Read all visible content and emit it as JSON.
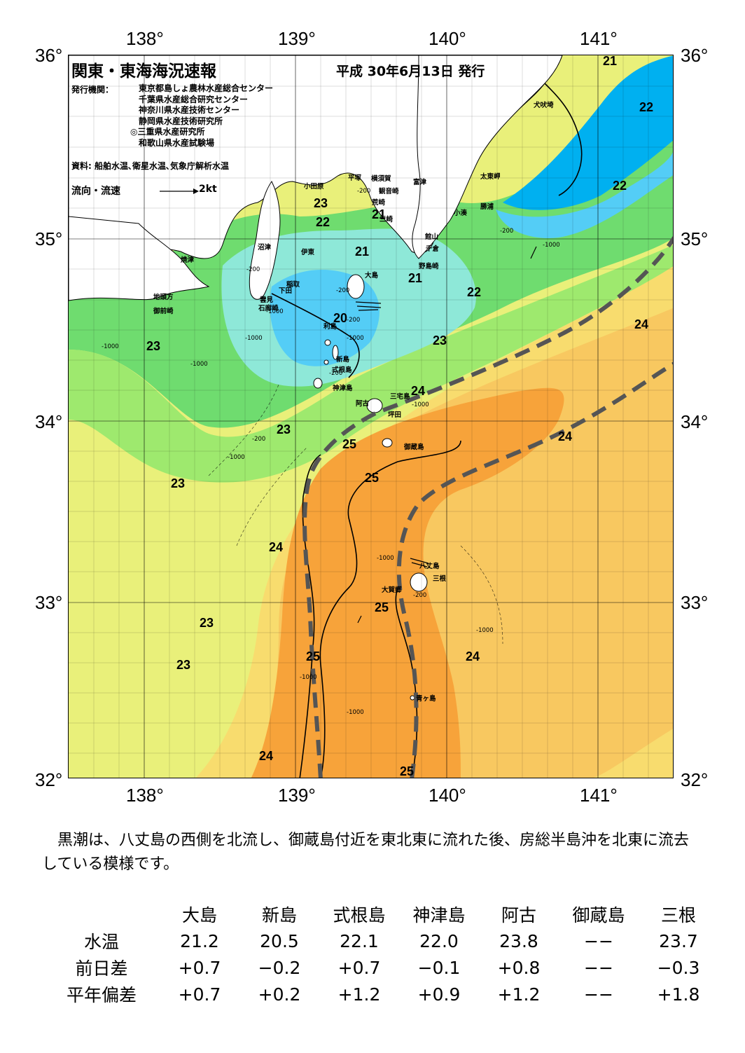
{
  "header": {
    "title": "関東・東海海況速報",
    "date": "平成 30年6月13日 発行",
    "org_label": "発行機関：",
    "organizations": [
      "東京都島しょ農林水産総合センター",
      "千葉県水産総合研究センター",
      "神奈川県水産技術センター",
      "静岡県水産技術研究所",
      "◎三重県水産研究所",
      "和歌山県水産試験場"
    ],
    "source": "資料: 船舶水温､衛星水温､気象庁解析水温",
    "flow_legend": "流向・流速",
    "flow_kt": "2kt"
  },
  "axes": {
    "lon_top": [
      "138°",
      "139°",
      "140°",
      "141°"
    ],
    "lon_bottom": [
      "138°",
      "139°",
      "140°",
      "141°"
    ],
    "lat_left": [
      "36°",
      "35°",
      "34°",
      "33°",
      "32°"
    ],
    "lat_right": [
      "36°",
      "35°",
      "34°",
      "33°",
      "32°"
    ]
  },
  "places": {
    "inubosaki": "犬吠埼",
    "taitomisaki": "太東岬",
    "katsuura": "勝浦",
    "kominato": "小湊",
    "tomitsu": "富津",
    "yokosuka": "横須賀",
    "kannonzaki": "観音崎",
    "arasaki": "荒崎",
    "misaki": "三崎",
    "hiratsuka": "平塚",
    "odawara": "小田原",
    "tateyama": "館山",
    "chikura": "千倉",
    "nojimazaki": "野島崎",
    "numazu": "沼津",
    "ito": "伊東",
    "yaizu": "焼津",
    "inatori": "稲取",
    "shimoda": "下田",
    "kumomi": "雲見",
    "irozaki": "石廊崎",
    "jitogata": "地頭方",
    "omaezaki": "御前崎",
    "oshima": "大島",
    "toshima": "利島",
    "niijima": "新島",
    "shikinejima": "式根島",
    "kozushima": "神津島",
    "miyakejima": "三宅島",
    "ako": "阿古",
    "tsubota": "坪田",
    "mikurajima": "御蔵島",
    "hachijojima": "八丈島",
    "mitsune": "三根",
    "okago": "大賀郷",
    "aogashima": "青ヶ島"
  },
  "isotherm_labels": [
    "21",
    "22",
    "22",
    "23",
    "22",
    "21",
    "21",
    "21",
    "22",
    "20",
    "23",
    "24",
    "23",
    "24",
    "23",
    "24",
    "25",
    "25",
    "24",
    "23",
    "25",
    "24",
    "23",
    "23",
    "25",
    "24",
    "25"
  ],
  "depth_labels": [
    "-200",
    "-200",
    "-200",
    "-1000",
    "-1000",
    "-1000",
    "-200",
    "-1000",
    "-200",
    "-1000",
    "-1000",
    "-200",
    "-1000",
    "-1000",
    "-1000",
    "-1000",
    "-200",
    "-1000",
    "-1000",
    "-200"
  ],
  "summary": "黒潮は、八丈島の西側を北流し、御蔵島付近を東北東に流れた後、房総半島沖を北東に流去している模様です。",
  "stats": {
    "columns": [
      "大島",
      "新島",
      "式根島",
      "神津島",
      "阿古",
      "御蔵島",
      "三根"
    ],
    "rows": [
      {
        "label": "水温",
        "values": [
          "21.2",
          "20.5",
          "22.1",
          "22.0",
          "23.8",
          "−−",
          "23.7"
        ]
      },
      {
        "label": "前日差",
        "values": [
          "+0.7",
          "−0.2",
          "+0.7",
          "−0.1",
          "+0.8",
          "−−",
          "−0.3"
        ]
      },
      {
        "label": "平年偏差",
        "values": [
          "+0.7",
          "+0.2",
          "+1.2",
          "+0.9",
          "+1.2",
          "−−",
          "+1.8"
        ]
      }
    ]
  },
  "colors": {
    "sst_19": "#00b0f0",
    "sst_20": "#54cdf6",
    "sst_21": "#8ee8d8",
    "sst_22": "#6fdc6f",
    "sst_23": "#9ee96e",
    "sst_23_5": "#e9f07a",
    "sst_24": "#f8dc6e",
    "sst_24_5": "#f8c860",
    "sst_25": "#f7a33a",
    "kuroshio_axis": "#555555",
    "land": "#ffffff"
  }
}
